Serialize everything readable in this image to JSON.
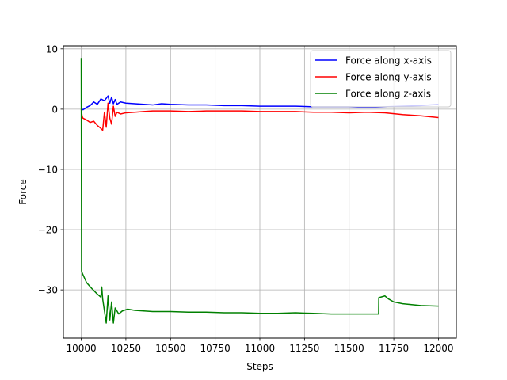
{
  "chart_data": {
    "type": "line",
    "title": "",
    "xlabel": "Steps",
    "ylabel": "Force",
    "xlim": [
      9900,
      12100
    ],
    "ylim": [
      -38,
      10.5
    ],
    "xticks": [
      10000,
      10250,
      10500,
      10750,
      11000,
      11250,
      11500,
      11750,
      12000
    ],
    "xtick_labels": [
      "10000",
      "10250",
      "10500",
      "10750",
      "11000",
      "11250",
      "11500",
      "11750",
      "12000"
    ],
    "yticks": [
      10,
      0,
      -10,
      -20,
      -30
    ],
    "ytick_labels": [
      "10",
      "0",
      "−10",
      "−20",
      "−30"
    ],
    "grid": true,
    "legend_position": "top-right",
    "series": [
      {
        "name": "Force along x-axis",
        "color": "#0000ff",
        "x": [
          10000,
          10005,
          10010,
          10030,
          10050,
          10070,
          10090,
          10110,
          10130,
          10150,
          10160,
          10170,
          10180,
          10190,
          10200,
          10220,
          10250,
          10300,
          10350,
          10400,
          10450,
          10500,
          10600,
          10700,
          10800,
          10900,
          11000,
          11100,
          11200,
          11300,
          11400,
          11500,
          11600,
          11700,
          11800,
          11900,
          12000
        ],
        "y": [
          0.0,
          0.0,
          -0.1,
          0.3,
          0.6,
          1.2,
          0.8,
          1.7,
          1.4,
          2.2,
          1.0,
          2.0,
          0.9,
          1.6,
          0.8,
          1.2,
          1.0,
          0.9,
          0.8,
          0.7,
          0.9,
          0.8,
          0.7,
          0.7,
          0.6,
          0.6,
          0.5,
          0.5,
          0.5,
          0.4,
          0.4,
          0.4,
          0.3,
          0.4,
          0.5,
          0.6,
          0.8
        ]
      },
      {
        "name": "Force along y-axis",
        "color": "#ff0000",
        "x": [
          10000,
          10005,
          10010,
          10030,
          10050,
          10070,
          10090,
          10110,
          10120,
          10130,
          10140,
          10150,
          10160,
          10170,
          10180,
          10190,
          10200,
          10220,
          10250,
          10300,
          10350,
          10400,
          10500,
          10600,
          10700,
          10800,
          10900,
          11000,
          11100,
          11200,
          11300,
          11400,
          11500,
          11600,
          11700,
          11800,
          11900,
          12000
        ],
        "y": [
          0.0,
          -1.2,
          -1.5,
          -1.8,
          -2.2,
          -2.0,
          -2.7,
          -3.2,
          -3.5,
          -0.5,
          -3.0,
          1.0,
          -1.5,
          -2.5,
          0.5,
          -1.2,
          -0.5,
          -0.8,
          -0.6,
          -0.5,
          -0.4,
          -0.3,
          -0.3,
          -0.4,
          -0.3,
          -0.3,
          -0.3,
          -0.4,
          -0.4,
          -0.4,
          -0.5,
          -0.5,
          -0.6,
          -0.5,
          -0.6,
          -0.9,
          -1.1,
          -1.4
        ]
      },
      {
        "name": "Force along z-axis",
        "color": "#008000",
        "x": [
          10000,
          10001,
          10002,
          10003,
          10010,
          10030,
          10060,
          10090,
          10110,
          10115,
          10120,
          10125,
          10140,
          10150,
          10160,
          10170,
          10180,
          10190,
          10210,
          10230,
          10260,
          10300,
          10400,
          10500,
          10600,
          10700,
          10800,
          10900,
          11000,
          11100,
          11200,
          11300,
          11400,
          11500,
          11600,
          11665,
          11666,
          11700,
          11720,
          11750,
          11800,
          11900,
          12000
        ],
        "y": [
          8.5,
          -10.0,
          -26.8,
          -27.0,
          -27.5,
          -28.8,
          -29.8,
          -30.7,
          -31.2,
          -29.5,
          -31.5,
          -32.5,
          -35.5,
          -31.0,
          -35.0,
          -32.0,
          -35.5,
          -33.0,
          -34.0,
          -33.5,
          -33.2,
          -33.4,
          -33.6,
          -33.6,
          -33.7,
          -33.7,
          -33.8,
          -33.8,
          -33.9,
          -33.9,
          -33.8,
          -33.9,
          -34.0,
          -34.0,
          -34.0,
          -34.0,
          -31.3,
          -31.0,
          -31.5,
          -32.0,
          -32.3,
          -32.6,
          -32.7
        ]
      }
    ]
  }
}
